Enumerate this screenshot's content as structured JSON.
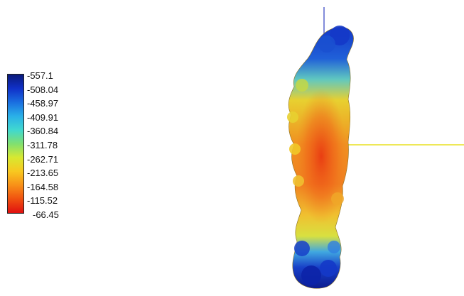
{
  "legend": {
    "tick_labels": [
      "-557.1",
      "-508.04",
      "-458.97",
      "-409.91",
      "-360.84",
      "-311.78",
      "-262.71",
      "-213.65",
      "-164.58",
      "-115.52",
      "-66.45"
    ],
    "gradient_colors": [
      "#0a1a7a",
      "#1030c8",
      "#1a6ee0",
      "#2ab0e8",
      "#40d8d0",
      "#80e070",
      "#d8e830",
      "#f8c820",
      "#f89018",
      "#f05010",
      "#e01010"
    ]
  },
  "scene": {
    "surface_colors": {
      "outer": "#1438c8",
      "mid": "#e8d030",
      "core": "#f07820",
      "hot": "#e02010"
    },
    "axis_colors": {
      "vertical": "#3040c0",
      "horizontal": "#e8e020"
    }
  }
}
